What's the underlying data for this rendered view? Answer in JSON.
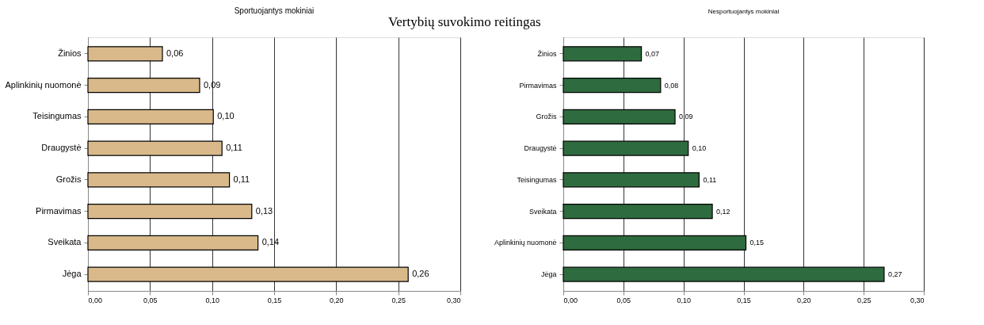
{
  "chart_data": [
    {
      "type": "bar",
      "orientation": "horizontal",
      "title": "Sportuojantys mokiniai",
      "annotations": [
        "Vertybių suvokimo reitingas"
      ],
      "categories": [
        "Žinios",
        "Aplinkinių nuomonė",
        "Teisingumas",
        "Draugystė",
        "Grožis",
        "Pirmavimas",
        "Sveikata",
        "Jėga"
      ],
      "series": [
        {
          "color": "#d9b98a",
          "values": [
            0.06,
            0.09,
            0.101,
            0.108,
            0.114,
            0.132,
            0.137,
            0.258
          ]
        }
      ],
      "value_labels": [
        "0,06",
        "0,09",
        "0,10",
        "0,11",
        "0,11",
        "0,13",
        "0,14",
        "0,26"
      ],
      "xlim": [
        0,
        0.3
      ],
      "xticks": [
        {
          "value": 0,
          "label": "0,00"
        },
        {
          "value": 0.05,
          "label": "0,05"
        },
        {
          "value": 0.1,
          "label": "0,10"
        },
        {
          "value": 0.15,
          "label": "0,15"
        },
        {
          "value": 0.2,
          "label": "0,20"
        },
        {
          "value": 0.25,
          "label": "0,25"
        },
        {
          "value": 0.3,
          "label": "0,30"
        }
      ],
      "grid": "x"
    },
    {
      "type": "bar",
      "orientation": "horizontal",
      "title": "Nesportuojantys mokiniai",
      "categories": [
        "Žinios",
        "Pirmavimas",
        "Grožis",
        "Draugystė",
        "Teisingumas",
        "Sveikata",
        "Aplinkinių nuomonė",
        "Jėga"
      ],
      "series": [
        {
          "color": "#2e6b3f",
          "values": [
            0.065,
            0.081,
            0.093,
            0.104,
            0.113,
            0.124,
            0.152,
            0.267
          ]
        }
      ],
      "value_labels": [
        "0,07",
        "0,08",
        "0,09",
        "0,10",
        "0,11",
        "0,12",
        "0,15",
        "0,27"
      ],
      "xlim": [
        0,
        0.3
      ],
      "xticks": [
        {
          "value": 0,
          "label": "0,00"
        },
        {
          "value": 0.05,
          "label": "0,05"
        },
        {
          "value": 0.1,
          "label": "0,10"
        },
        {
          "value": 0.15,
          "label": "0,15"
        },
        {
          "value": 0.2,
          "label": "0,20"
        },
        {
          "value": 0.25,
          "label": "0,25"
        },
        {
          "value": 0.3,
          "label": "0,30"
        }
      ],
      "grid": "x"
    }
  ]
}
